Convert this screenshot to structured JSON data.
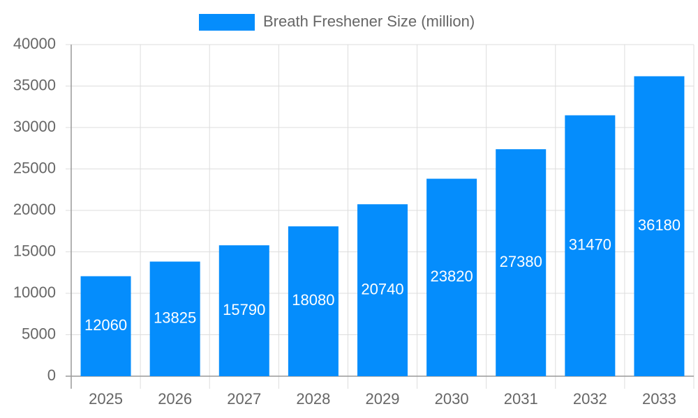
{
  "chart_data": {
    "type": "bar",
    "categories": [
      "2025",
      "2026",
      "2027",
      "2028",
      "2029",
      "2030",
      "2031",
      "2032",
      "2033"
    ],
    "series": [
      {
        "name": "Breath Freshener Size (million)",
        "color": "#058dfc",
        "values": [
          12060,
          13825,
          15790,
          18080,
          20740,
          23820,
          27380,
          31470,
          36180
        ]
      }
    ],
    "ylim": [
      0,
      40000
    ],
    "yticks": [
      0,
      5000,
      10000,
      15000,
      20000,
      25000,
      30000,
      35000,
      40000
    ],
    "grid": true,
    "legend": "top",
    "data_labels": true
  }
}
